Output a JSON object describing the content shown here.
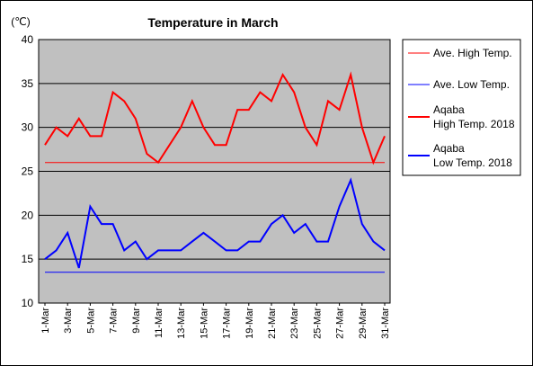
{
  "chart_data": {
    "type": "line",
    "title": "Temperature in March",
    "ylabel": "(℃)",
    "ylim": [
      10,
      40
    ],
    "yticks": [
      10,
      15,
      20,
      25,
      30,
      35,
      40
    ],
    "grid": true,
    "legend_position": "right",
    "x": [
      "1-Mar",
      "2-Mar",
      "3-Mar",
      "4-Mar",
      "5-Mar",
      "6-Mar",
      "7-Mar",
      "8-Mar",
      "9-Mar",
      "10-Mar",
      "11-Mar",
      "12-Mar",
      "13-Mar",
      "14-Mar",
      "15-Mar",
      "16-Mar",
      "17-Mar",
      "18-Mar",
      "19-Mar",
      "20-Mar",
      "21-Mar",
      "22-Mar",
      "23-Mar",
      "24-Mar",
      "25-Mar",
      "26-Mar",
      "27-Mar",
      "28-Mar",
      "29-Mar",
      "30-Mar",
      "31-Mar"
    ],
    "xtick_labels": [
      "1-Mar",
      "3-Mar",
      "5-Mar",
      "7-Mar",
      "9-Mar",
      "11-Mar",
      "13-Mar",
      "15-Mar",
      "17-Mar",
      "19-Mar",
      "21-Mar",
      "23-Mar",
      "25-Mar",
      "27-Mar",
      "29-Mar",
      "31-Mar"
    ],
    "series": [
      {
        "name": "Ave. High Temp.",
        "color": "#ff0000",
        "width": 1,
        "values": [
          26,
          26,
          26,
          26,
          26,
          26,
          26,
          26,
          26,
          26,
          26,
          26,
          26,
          26,
          26,
          26,
          26,
          26,
          26,
          26,
          26,
          26,
          26,
          26,
          26,
          26,
          26,
          26,
          26,
          26,
          26
        ]
      },
      {
        "name": "Ave. Low Temp.",
        "color": "#0000ff",
        "width": 1,
        "values": [
          13.5,
          13.5,
          13.5,
          13.5,
          13.5,
          13.5,
          13.5,
          13.5,
          13.5,
          13.5,
          13.5,
          13.5,
          13.5,
          13.5,
          13.5,
          13.5,
          13.5,
          13.5,
          13.5,
          13.5,
          13.5,
          13.5,
          13.5,
          13.5,
          13.5,
          13.5,
          13.5,
          13.5,
          13.5,
          13.5,
          13.5
        ]
      },
      {
        "name": "Aqaba High Temp. 2018",
        "legend_lines": [
          "Aqaba",
          "High Temp. 2018"
        ],
        "color": "#ff0000",
        "width": 2,
        "values": [
          28,
          30,
          29,
          31,
          29,
          29,
          34,
          33,
          31,
          27,
          26,
          28,
          30,
          33,
          30,
          28,
          28,
          32,
          32,
          34,
          33,
          36,
          34,
          30,
          28,
          33,
          32,
          36,
          30,
          26,
          29
        ]
      },
      {
        "name": "Aqaba Low Temp. 2018",
        "legend_lines": [
          "Aqaba",
          "Low Temp. 2018"
        ],
        "color": "#0000ff",
        "width": 2,
        "values": [
          15,
          16,
          18,
          14,
          21,
          19,
          19,
          16,
          17,
          15,
          16,
          16,
          16,
          17,
          18,
          17,
          16,
          16,
          17,
          17,
          19,
          20,
          18,
          19,
          17,
          17,
          21,
          24,
          19,
          17,
          16
        ]
      }
    ]
  }
}
